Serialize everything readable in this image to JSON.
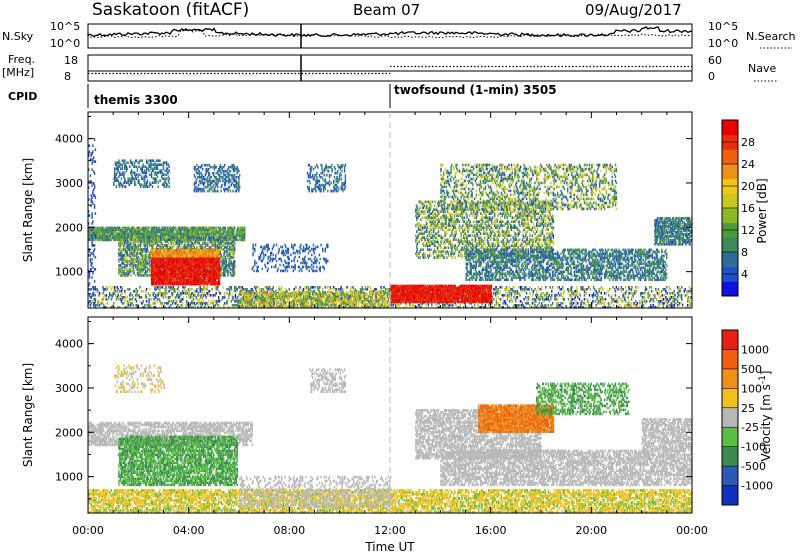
{
  "header": {
    "title": "Saskatoon (fitACF)",
    "beam": "Beam 07",
    "date": "09/Aug/2017"
  },
  "strip_nsky": {
    "left_label": "N.Sky",
    "left_ticks": [
      "10^5",
      "10^0"
    ],
    "right_ticks": [
      "10^5",
      "10^0"
    ],
    "right_label": "N.Search"
  },
  "strip_freq": {
    "left_label_1": "Freq.",
    "left_label_2": "[MHz]",
    "left_ticks": [
      "18",
      "8"
    ],
    "right_ticks": [
      "60",
      "0"
    ],
    "right_label": "Nave"
  },
  "cpid": {
    "label": "CPID",
    "modes": [
      {
        "name": "themis 3300",
        "start_hour": 0
      },
      {
        "name": "twofsound (1-min) 3505",
        "start_hour": 12
      }
    ]
  },
  "x_axis": {
    "label": "Time UT",
    "ticks": [
      "00:00",
      "04:00",
      "08:00",
      "12:00",
      "16:00",
      "20:00",
      "00:00"
    ],
    "range_hours": [
      0,
      24
    ]
  },
  "chart_data": [
    {
      "type": "heatmap",
      "name": "power",
      "ylabel": "Slant Range [km]",
      "yticks": [
        "1000",
        "2000",
        "3000",
        "4000"
      ],
      "ylim": [
        180,
        4600
      ],
      "xlim": [
        0,
        24
      ],
      "colorbar": {
        "label": "Power [dB]",
        "ticks": [
          "4",
          "8",
          "12",
          "16",
          "20",
          "24",
          "28"
        ],
        "colors": [
          "#1010e0",
          "#2050c8",
          "#2c6e96",
          "#3d8b5c",
          "#4e9a3a",
          "#8cb828",
          "#c8c820",
          "#f0c818",
          "#f09018",
          "#ef6010",
          "#e83010",
          "#e80000"
        ]
      }
    },
    {
      "type": "heatmap",
      "name": "velocity",
      "ylabel": "Slant Range [km]",
      "yticks": [
        "1000",
        "2000",
        "3000",
        "4000"
      ],
      "ylim": [
        180,
        4600
      ],
      "xlim": [
        0,
        24
      ],
      "colorbar": {
        "label": "Velocity [m s^-1]",
        "ticks": [
          "1000",
          "500",
          "100",
          "25",
          "-25",
          "-100",
          "-500",
          "-1000"
        ],
        "colors": [
          "#1030c0",
          "#2c58b8",
          "#3c8c50",
          "#58c040",
          "#b8b8b8",
          "#f0c020",
          "#f09018",
          "#f06010",
          "#e82010"
        ]
      }
    }
  ]
}
